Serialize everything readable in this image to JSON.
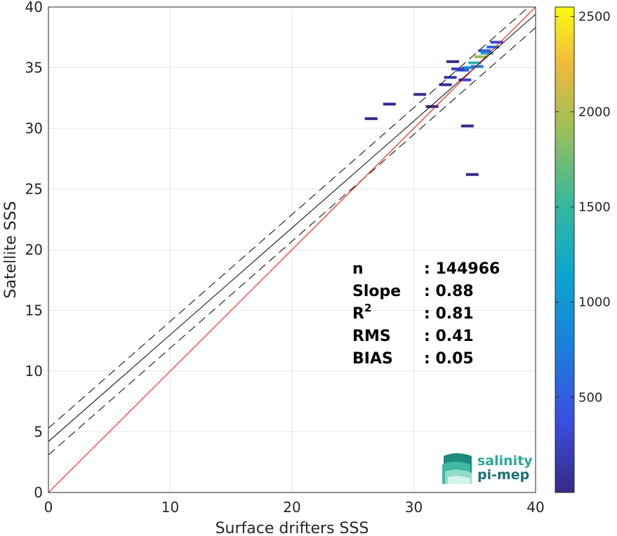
{
  "chart_data": {
    "type": "heatmap",
    "xlabel": "Surface drifters SSS",
    "ylabel": "Satellite SSS",
    "xlim": [
      0,
      40
    ],
    "ylim": [
      0,
      40
    ],
    "xticks": [
      "0",
      "10",
      "20",
      "30",
      "40"
    ],
    "yticks": [
      "0",
      "5",
      "10",
      "15",
      "20",
      "25",
      "30",
      "35",
      "40"
    ],
    "grid": true,
    "colorbar": {
      "range": [
        0,
        2550
      ],
      "ticks": [
        "500",
        "1000",
        "1500",
        "2000",
        "2500"
      ],
      "colormap": "parula"
    },
    "reference_line": {
      "slope": 1,
      "intercept": 0,
      "color": "#ff0000"
    },
    "fit_line": {
      "slope": 0.88,
      "intercept": 4.2,
      "color": "#000000"
    },
    "fit_bounds": [
      {
        "slope": 0.88,
        "intercept": 5.3,
        "style": "dashed"
      },
      {
        "slope": 0.88,
        "intercept": 3.1,
        "style": "dashed"
      }
    ],
    "density_bins": [
      {
        "x": 33.0,
        "y": 34.2,
        "count": 120
      },
      {
        "x": 34.0,
        "y": 34.8,
        "count": 450
      },
      {
        "x": 34.5,
        "y": 35.0,
        "count": 900
      },
      {
        "x": 35.0,
        "y": 35.4,
        "count": 1400
      },
      {
        "x": 35.5,
        "y": 35.9,
        "count": 1900
      },
      {
        "x": 36.0,
        "y": 36.2,
        "count": 1200
      },
      {
        "x": 36.5,
        "y": 36.7,
        "count": 600
      },
      {
        "x": 35.2,
        "y": 35.1,
        "count": 800
      },
      {
        "x": 34.2,
        "y": 34.0,
        "count": 300
      },
      {
        "x": 33.6,
        "y": 34.9,
        "count": 200
      },
      {
        "x": 36.8,
        "y": 37.1,
        "count": 350
      },
      {
        "x": 35.8,
        "y": 36.4,
        "count": 500
      },
      {
        "x": 32.6,
        "y": 33.6,
        "count": 60
      },
      {
        "x": 30.5,
        "y": 32.8,
        "count": 20
      },
      {
        "x": 31.5,
        "y": 31.8,
        "count": 25
      },
      {
        "x": 26.5,
        "y": 30.8,
        "count": 10
      },
      {
        "x": 34.4,
        "y": 30.2,
        "count": 15
      },
      {
        "x": 34.8,
        "y": 26.2,
        "count": 5
      },
      {
        "x": 33.2,
        "y": 35.5,
        "count": 40
      },
      {
        "x": 28.0,
        "y": 32.0,
        "count": 8
      }
    ],
    "stats": {
      "rows": [
        {
          "label": "n",
          "sep": ": 144966"
        },
        {
          "label": "Slope",
          "sep": ": 0.88"
        },
        {
          "label": "R",
          "sup": "2",
          "sep": ": 0.81"
        },
        {
          "label": "RMS",
          "sep": ": 0.41"
        },
        {
          "label": "BIAS",
          "sep": ": 0.05"
        }
      ]
    }
  },
  "logo": {
    "line1": "salinity",
    "line2": "pi-mep"
  }
}
